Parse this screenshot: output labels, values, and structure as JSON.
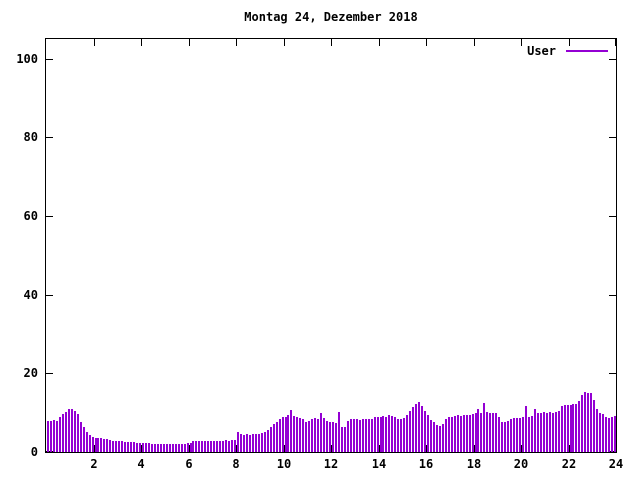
{
  "title": "Montag 24, Dezember 2018",
  "legend": {
    "label": "User"
  },
  "colors": {
    "series": "#9400d3",
    "axis": "#000000",
    "background": "#ffffff"
  },
  "chart_data": {
    "type": "bar",
    "title": "Montag 24, Dezember 2018",
    "xlabel": "",
    "ylabel": "",
    "x_range": [
      0,
      24
    ],
    "y_range": [
      0,
      105
    ],
    "yticks": [
      0,
      20,
      40,
      60,
      80,
      100
    ],
    "xticks": [
      2,
      4,
      6,
      8,
      10,
      12,
      14,
      16,
      18,
      20,
      22,
      24
    ],
    "grid": "off",
    "legend_position": "top-right",
    "bar_color": "#9400d3",
    "points_per_hour": 8,
    "series": [
      {
        "name": "User",
        "values": [
          7.8,
          8.0,
          8.2,
          8.0,
          9.0,
          9.6,
          10.2,
          10.9,
          10.9,
          10.5,
          9.6,
          7.6,
          6.3,
          5.0,
          4.2,
          3.8,
          3.6,
          3.5,
          3.5,
          3.4,
          3.2,
          3.0,
          2.9,
          2.8,
          2.8,
          2.7,
          2.6,
          2.6,
          2.5,
          2.5,
          2.4,
          2.4,
          2.3,
          2.2,
          2.2,
          2.1,
          2.1,
          2.0,
          2.0,
          2.0,
          2.0,
          2.0,
          2.1,
          2.1,
          2.0,
          2.0,
          2.1,
          2.2,
          2.3,
          2.8,
          2.8,
          2.9,
          2.8,
          2.8,
          2.9,
          2.8,
          2.8,
          2.9,
          2.8,
          2.9,
          3.0,
          2.9,
          3.0,
          3.1,
          5.0,
          4.5,
          4.3,
          4.5,
          4.4,
          4.6,
          4.5,
          4.7,
          4.8,
          5.0,
          5.5,
          6.3,
          7.0,
          7.5,
          8.5,
          8.8,
          9.0,
          9.3,
          10.6,
          9.2,
          8.8,
          8.6,
          8.4,
          7.6,
          8.0,
          8.4,
          8.6,
          8.4,
          10.0,
          8.6,
          8.0,
          7.6,
          7.5,
          7.4,
          10.1,
          6.3,
          6.4,
          7.8,
          8.3,
          8.4,
          8.3,
          8.2,
          8.4,
          8.3,
          8.5,
          8.4,
          8.8,
          9.0,
          9.0,
          9.2,
          9.0,
          9.4,
          9.1,
          8.9,
          8.4,
          8.4,
          8.6,
          9.5,
          10.5,
          11.5,
          12.2,
          12.7,
          11.8,
          10.4,
          9.5,
          8.2,
          7.6,
          6.8,
          6.6,
          7.0,
          8.4,
          8.8,
          9.0,
          9.2,
          9.4,
          9.2,
          9.5,
          9.3,
          9.5,
          9.6,
          9.8,
          11.0,
          9.8,
          12.5,
          10.2,
          10.0,
          10.0,
          9.8,
          8.8,
          7.6,
          7.6,
          7.8,
          8.4,
          8.6,
          8.6,
          8.6,
          8.8,
          11.6,
          9.0,
          9.2,
          11.0,
          10.0,
          10.0,
          10.2,
          10.0,
          10.2,
          10.0,
          10.1,
          10.3,
          11.8,
          12.0,
          12.0,
          12.0,
          12.1,
          12.3,
          13.0,
          14.5,
          15.2,
          15.0,
          15.1,
          13.2,
          11.0,
          9.8,
          9.6,
          8.8,
          8.6,
          9.0,
          9.2
        ]
      }
    ]
  }
}
